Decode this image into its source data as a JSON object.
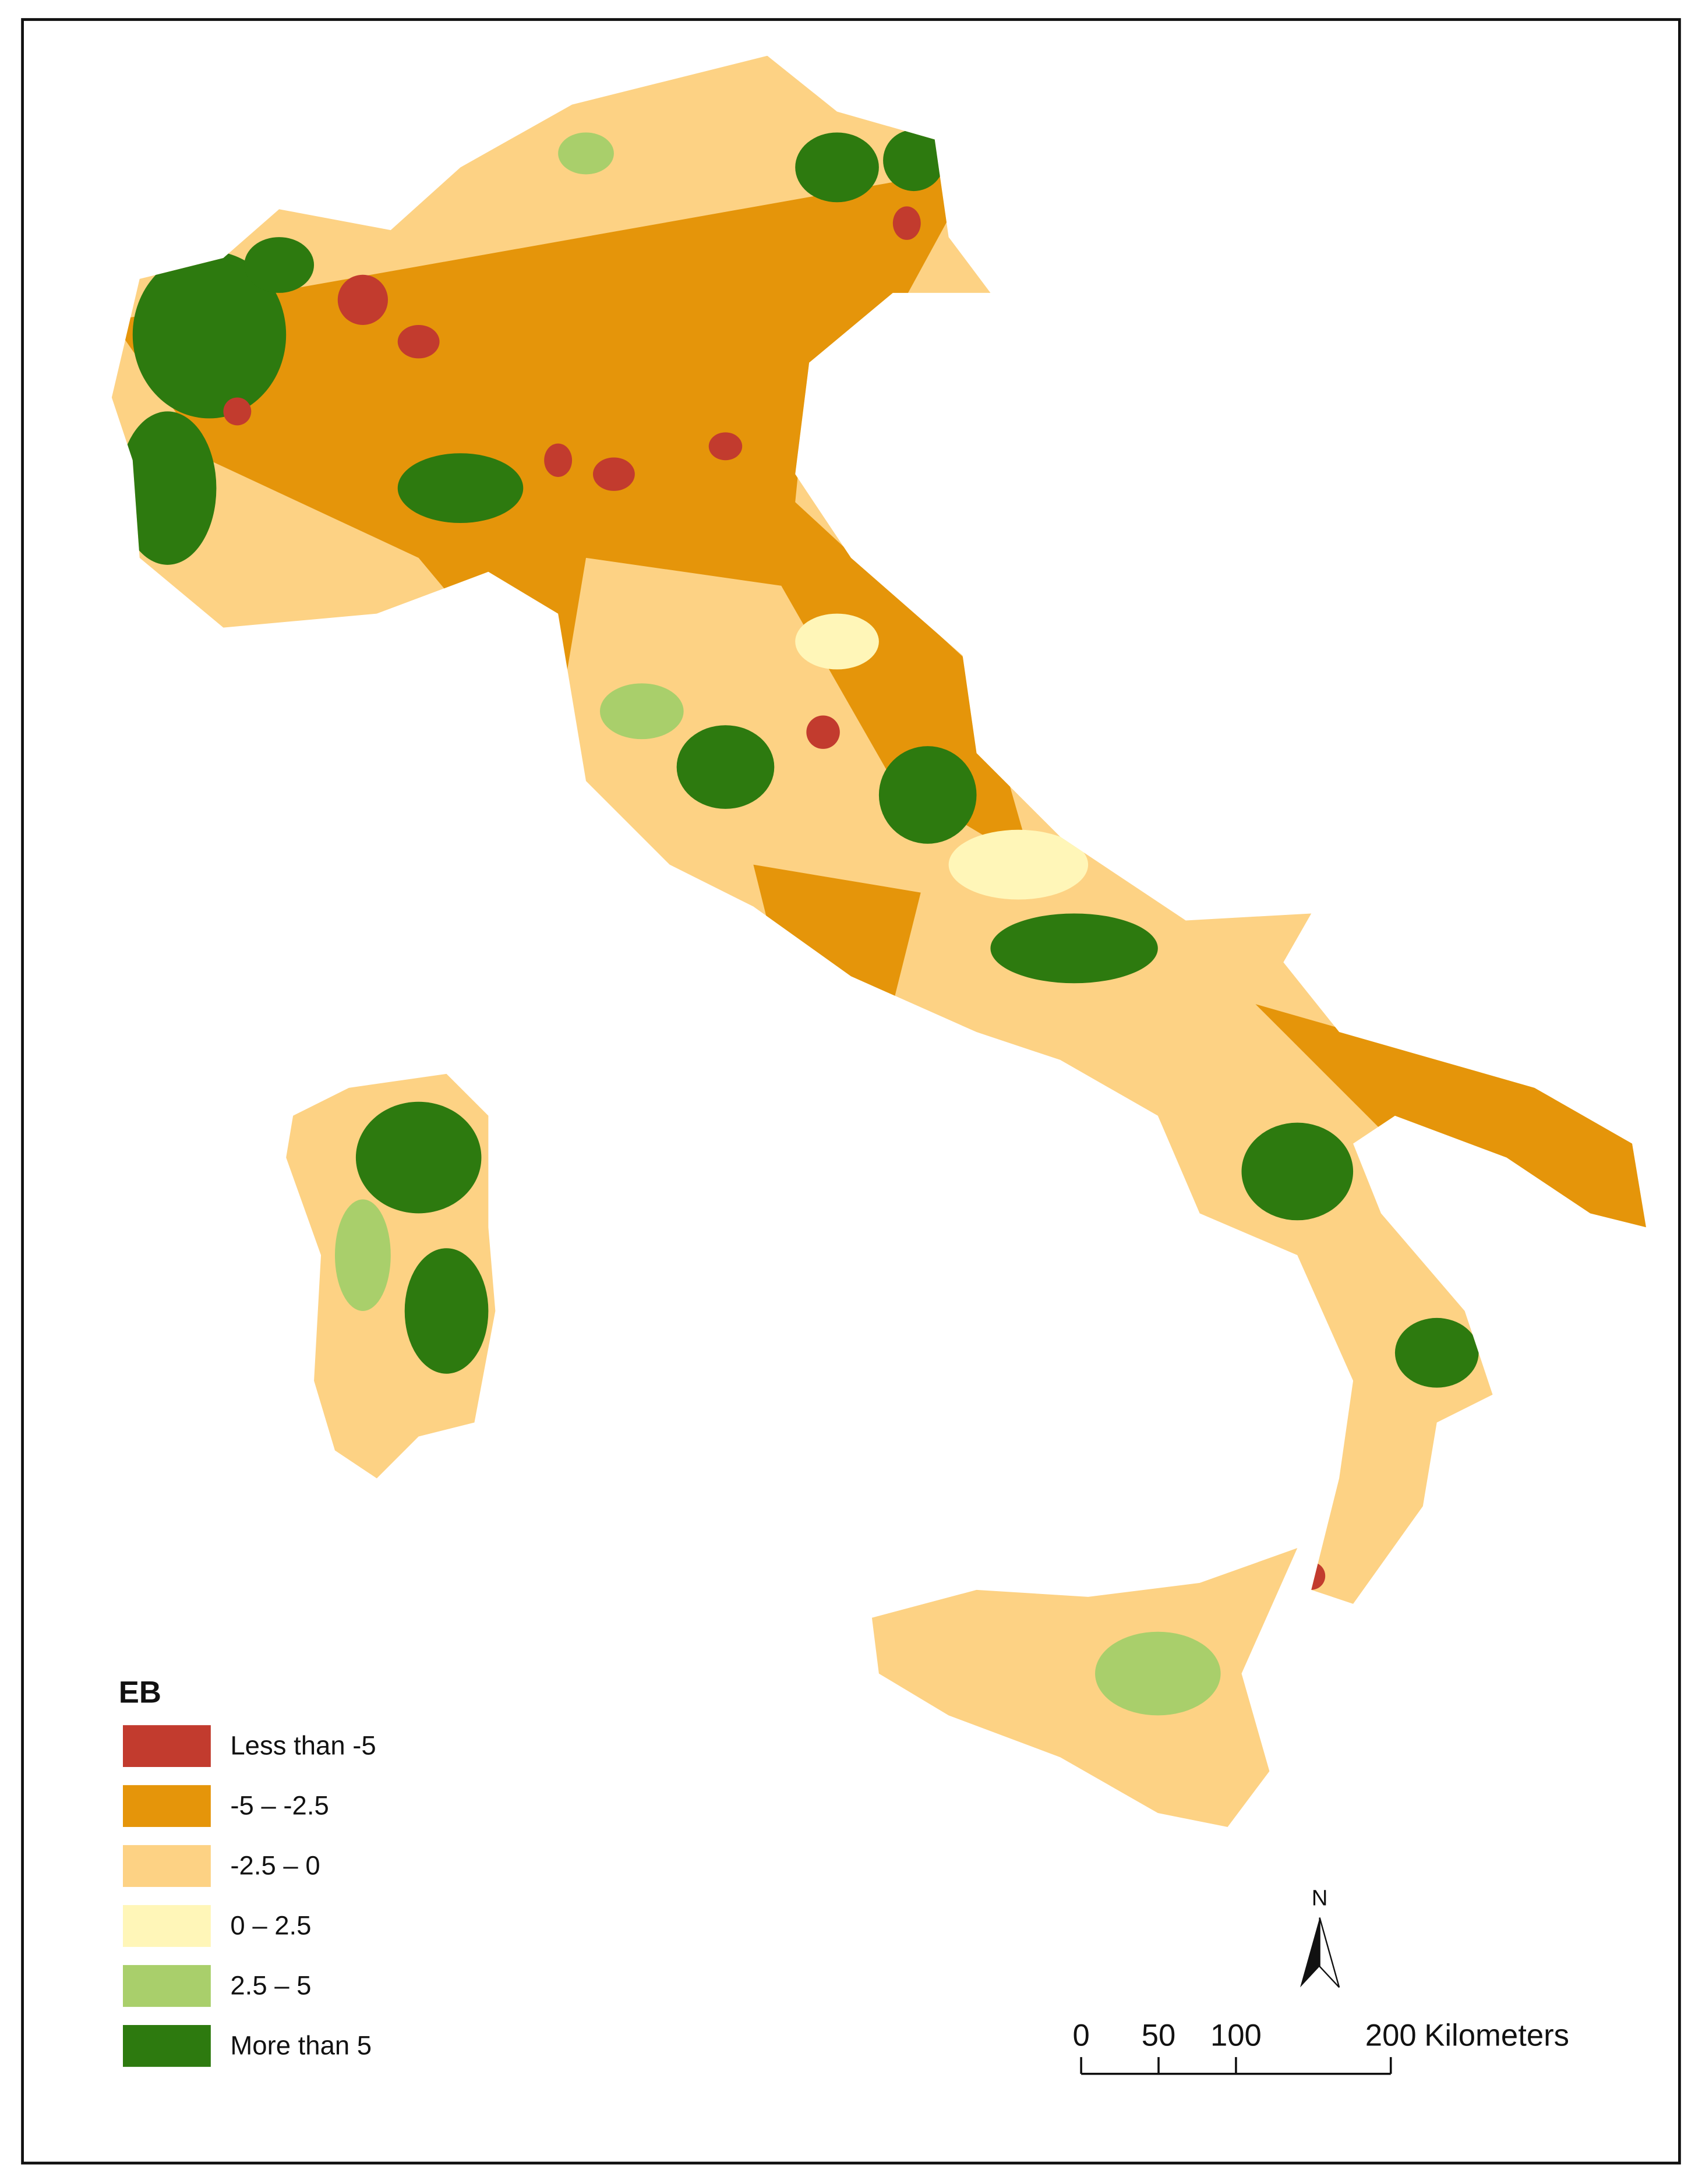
{
  "legend": {
    "title": "EB",
    "items": [
      {
        "label": "Less than -5",
        "color": "#c23b2e"
      },
      {
        "label": "-5 – -2.5",
        "color": "#e5950a"
      },
      {
        "label": "-2.5 – 0",
        "color": "#fdd284"
      },
      {
        "label": "0 – 2.5",
        "color": "#fff6b8"
      },
      {
        "label": "2.5 – 5",
        "color": "#a9cf6b"
      },
      {
        "label": "More than 5",
        "color": "#2d7a0f"
      }
    ]
  },
  "north": "N",
  "scale_bar": {
    "ticks": [
      0,
      50,
      100,
      200
    ],
    "unit": "Kilometers"
  }
}
